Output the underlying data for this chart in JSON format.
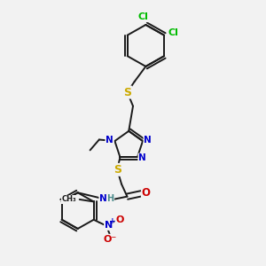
{
  "bg_color": "#f2f2f2",
  "bond_color": "#1a1a1a",
  "bond_width": 1.4,
  "atom_colors": {
    "C": "#1a1a1a",
    "N": "#0000cc",
    "S": "#ccaa00",
    "O": "#cc0000",
    "Cl": "#00bb00",
    "H": "#4a8a8a"
  },
  "font_size": 7.5
}
